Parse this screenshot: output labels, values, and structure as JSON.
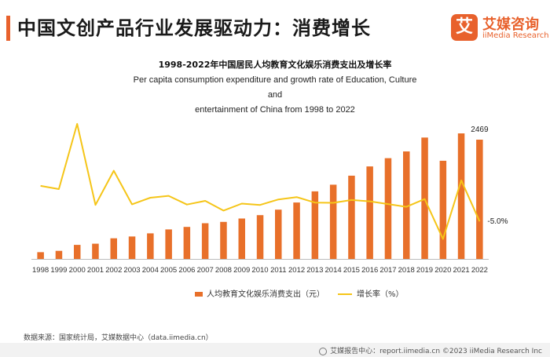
{
  "page": {
    "title": "中国文创产品行业发展驱动力：消费增长",
    "accent_color": "#e8612c"
  },
  "logo": {
    "mark": "艾",
    "name_cn": "艾媒咨询",
    "name_en": "iiMedia Research",
    "color": "#e8612c"
  },
  "chart_data": {
    "type": "bar",
    "title": "1998-2022年中国居民人均教育文化娱乐消费支出及增长率",
    "subtitle_lines": [
      "Per capita consumption expenditure and growth rate of Education, Culture and",
      "entertainment of China from 1998 to 2022"
    ],
    "categories": [
      "1998",
      "1999",
      "2000",
      "2001",
      "2002",
      "2003",
      "2004",
      "2005",
      "2006",
      "2007",
      "2008",
      "2009",
      "2010",
      "2011",
      "2012",
      "2013",
      "2014",
      "2015",
      "2016",
      "2017",
      "2018",
      "2019",
      "2020",
      "2021",
      "2022"
    ],
    "series": [
      {
        "name": "人均教育文化娱乐消费支出（元）",
        "type": "bar",
        "color": "#e8702a",
        "values": [
          139,
          168,
          291,
          315,
          427,
          464,
          529,
          611,
          663,
          739,
          766,
          837,
          906,
          1020,
          1168,
          1398,
          1536,
          1723,
          1915,
          2086,
          2226,
          2513,
          2032,
          2599,
          2469
        ]
      },
      {
        "name": "增长率（%）",
        "type": "line",
        "color": "#f5c518",
        "values": [
          23.5,
          20.9,
          73.2,
          8.2,
          35.6,
          8.7,
          14.0,
          15.5,
          8.5,
          11.5,
          3.7,
          9.3,
          8.2,
          12.6,
          14.5,
          10.1,
          9.9,
          12.2,
          11.1,
          8.9,
          6.7,
          12.9,
          -19.1,
          27.9,
          -5.0
        ]
      }
    ],
    "data_labels": [
      {
        "series": 0,
        "index": 24,
        "text": "2469"
      },
      {
        "series": 1,
        "index": 24,
        "text": "-5.0%"
      }
    ]
  },
  "source": "数据来源：国家统计局，艾媒数据中心（data.iimedia.cn）",
  "footer": "艾媒报告中心：report.iimedia.cn   ©2023  iiMedia Research  Inc"
}
